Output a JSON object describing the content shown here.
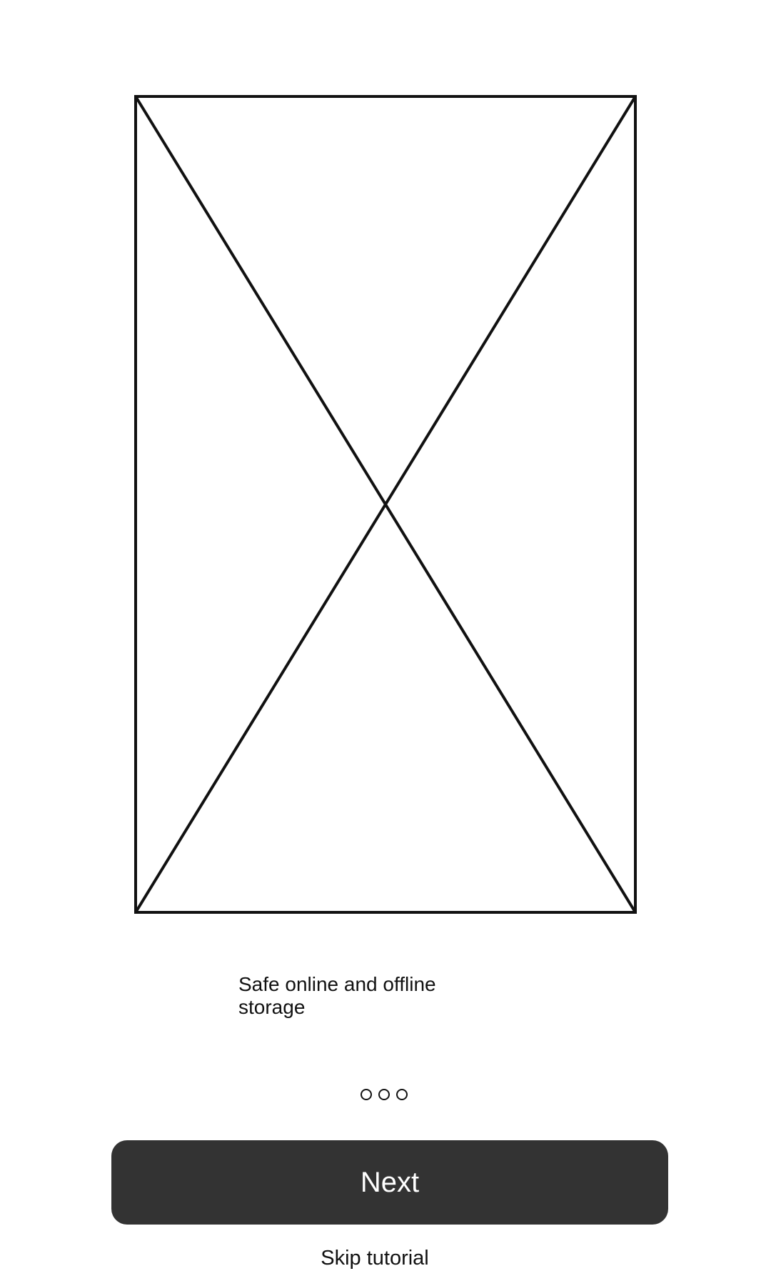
{
  "onboarding": {
    "caption": "Safe online and offline storage",
    "pager": {
      "total": 3
    },
    "next_label": "Next",
    "skip_label": "Skip tutorial"
  },
  "colors": {
    "button_background": "#333333",
    "button_text": "#ffffff",
    "stroke": "#111111",
    "page_background": "#ffffff"
  },
  "icons": {
    "hero": "image-placeholder-icon",
    "pager_dot": "circle-outline-icon"
  }
}
